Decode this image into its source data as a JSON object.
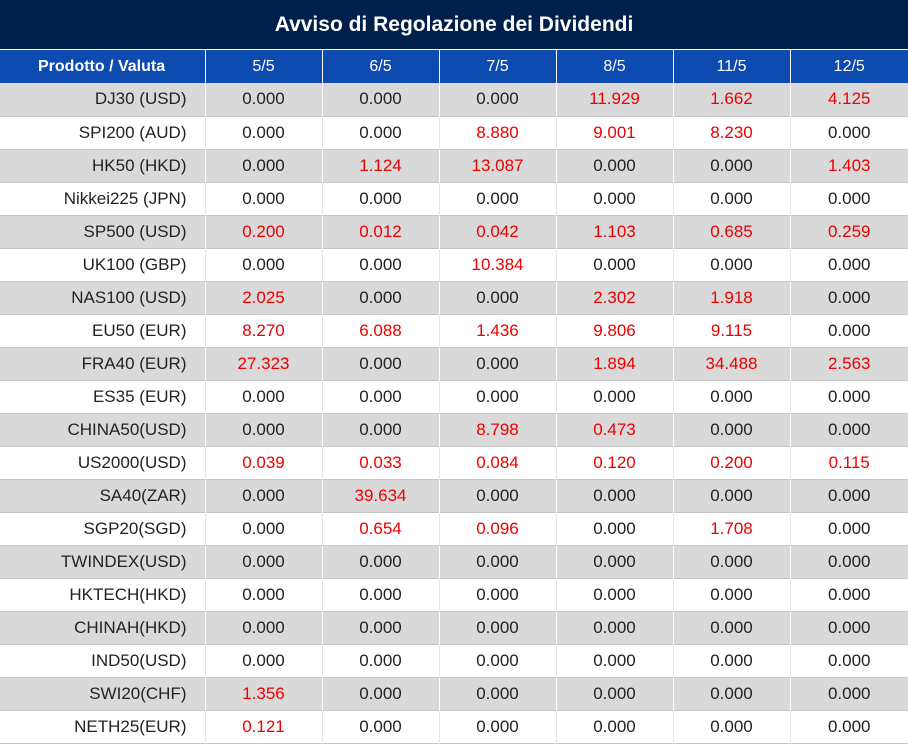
{
  "title": "Avviso di Regolazione dei Dividendi",
  "columns": [
    "Prodotto / Valuta",
    "5/5",
    "6/5",
    "7/5",
    "8/5",
    "11/5",
    "12/5"
  ],
  "colors": {
    "title_bg": "#001f4b",
    "header_bg": "#0d4bb0",
    "alt_row_bg": "#d9d9d9",
    "nonzero_value": "#ee0000",
    "zero_value": "#222222"
  },
  "rows": [
    {
      "product": "DJ30 (USD)",
      "values": [
        "0.000",
        "0.000",
        "0.000",
        "11.929",
        "1.662",
        "4.125"
      ]
    },
    {
      "product": "SPI200 (AUD)",
      "values": [
        "0.000",
        "0.000",
        "8.880",
        "9.001",
        "8.230",
        "0.000"
      ]
    },
    {
      "product": "HK50 (HKD)",
      "values": [
        "0.000",
        "1.124",
        "13.087",
        "0.000",
        "0.000",
        "1.403"
      ]
    },
    {
      "product": "Nikkei225 (JPN)",
      "values": [
        "0.000",
        "0.000",
        "0.000",
        "0.000",
        "0.000",
        "0.000"
      ]
    },
    {
      "product": "SP500 (USD)",
      "values": [
        "0.200",
        "0.012",
        "0.042",
        "1.103",
        "0.685",
        "0.259"
      ]
    },
    {
      "product": "UK100 (GBP)",
      "values": [
        "0.000",
        "0.000",
        "10.384",
        "0.000",
        "0.000",
        "0.000"
      ]
    },
    {
      "product": "NAS100 (USD)",
      "values": [
        "2.025",
        "0.000",
        "0.000",
        "2.302",
        "1.918",
        "0.000"
      ]
    },
    {
      "product": "EU50 (EUR)",
      "values": [
        "8.270",
        "6.088",
        "1.436",
        "9.806",
        "9.115",
        "0.000"
      ]
    },
    {
      "product": "FRA40 (EUR)",
      "values": [
        "27.323",
        "0.000",
        "0.000",
        "1.894",
        "34.488",
        "2.563"
      ]
    },
    {
      "product": "ES35 (EUR)",
      "values": [
        "0.000",
        "0.000",
        "0.000",
        "0.000",
        "0.000",
        "0.000"
      ]
    },
    {
      "product": "CHINA50(USD)",
      "values": [
        "0.000",
        "0.000",
        "8.798",
        "0.473",
        "0.000",
        "0.000"
      ]
    },
    {
      "product": "US2000(USD)",
      "values": [
        "0.039",
        "0.033",
        "0.084",
        "0.120",
        "0.200",
        "0.115"
      ]
    },
    {
      "product": "SA40(ZAR)",
      "values": [
        "0.000",
        "39.634",
        "0.000",
        "0.000",
        "0.000",
        "0.000"
      ]
    },
    {
      "product": "SGP20(SGD)",
      "values": [
        "0.000",
        "0.654",
        "0.096",
        "0.000",
        "1.708",
        "0.000"
      ]
    },
    {
      "product": "TWINDEX(USD)",
      "values": [
        "0.000",
        "0.000",
        "0.000",
        "0.000",
        "0.000",
        "0.000"
      ]
    },
    {
      "product": "HKTECH(HKD)",
      "values": [
        "0.000",
        "0.000",
        "0.000",
        "0.000",
        "0.000",
        "0.000"
      ]
    },
    {
      "product": "CHINAH(HKD)",
      "values": [
        "0.000",
        "0.000",
        "0.000",
        "0.000",
        "0.000",
        "0.000"
      ]
    },
    {
      "product": "IND50(USD)",
      "values": [
        "0.000",
        "0.000",
        "0.000",
        "0.000",
        "0.000",
        "0.000"
      ]
    },
    {
      "product": "SWI20(CHF)",
      "values": [
        "1.356",
        "0.000",
        "0.000",
        "0.000",
        "0.000",
        "0.000"
      ]
    },
    {
      "product": "NETH25(EUR)",
      "values": [
        "0.121",
        "0.000",
        "0.000",
        "0.000",
        "0.000",
        "0.000"
      ]
    }
  ]
}
